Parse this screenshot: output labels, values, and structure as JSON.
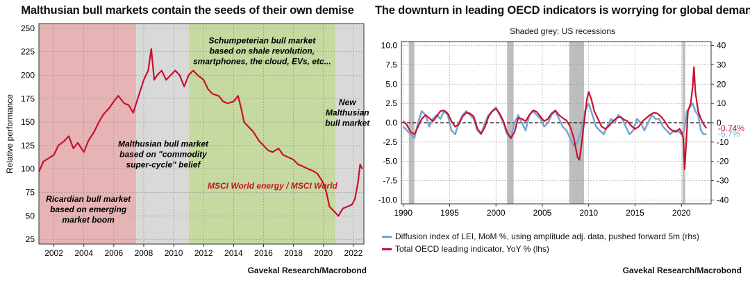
{
  "left": {
    "title": "Malthusian bull markets contain the seeds of their own demise",
    "source": "Gavekal Research/Macrobond"
  },
  "right": {
    "title": "The downturn in leading OECD indicators is worrying for global demand",
    "subtitle": "Shaded grey: US recessions",
    "source": "Gavekal Research/Macrobond"
  },
  "colors": {
    "red": "#c8102e",
    "blue": "#7aa6cf",
    "pink": "#e6b4b4",
    "grey": "#d9d9d9",
    "green": "#c5d9a0",
    "rec": "#bdbdbd"
  },
  "chart_data": [
    {
      "type": "line",
      "title": "Malthusian bull markets contain the seeds of their own demise",
      "ylabel": "Relative performance",
      "xlim": [
        2001,
        2022.7
      ],
      "ylim": [
        20,
        255
      ],
      "yticks": [
        25,
        50,
        75,
        100,
        125,
        150,
        175,
        200,
        225,
        250
      ],
      "xticks": [
        2002,
        2004,
        2006,
        2008,
        2010,
        2012,
        2014,
        2016,
        2018,
        2020,
        2022
      ],
      "grid": true,
      "regions": [
        {
          "x0": 2001,
          "x1": 2007.5,
          "color": "pink",
          "label": [
            "Ricardian bull market",
            "based on emerging",
            "market boom"
          ],
          "lx": 2004.3,
          "ly": 65
        },
        {
          "x0": 2007.5,
          "x1": 2011,
          "color": "grey",
          "label": [
            "Malthusian bull market",
            "based on \"commodity",
            "super-cycle\" belief"
          ],
          "lx": 2009.3,
          "ly": 124
        },
        {
          "x0": 2011,
          "x1": 2020.8,
          "color": "green",
          "label": [
            "Schumpeterian bull market",
            "based on shale revolution,",
            "smartphones, the cloud, EVs, etc..."
          ],
          "lx": 2015.9,
          "ly": 234
        },
        {
          "x0": 2020.8,
          "x1": 2022.7,
          "color": "grey",
          "label": [
            "New",
            "Malthusian",
            "bull market"
          ],
          "lx": 2021.6,
          "ly": 168
        }
      ],
      "series_label": "MSCI World energy / MSCI World",
      "series_label_pos": {
        "x": 2016.6,
        "y": 79
      },
      "series": [
        {
          "name": "MSCI World energy / MSCI World",
          "color": "red",
          "x": [
            2001.0,
            2001.3,
            2001.7,
            2002.0,
            2002.3,
            2002.7,
            2003.0,
            2003.3,
            2003.6,
            2004.0,
            2004.3,
            2004.7,
            2005.0,
            2005.3,
            2005.7,
            2006.0,
            2006.3,
            2006.7,
            2007.0,
            2007.3,
            2007.6,
            2008.0,
            2008.3,
            2008.5,
            2008.7,
            2008.9,
            2009.2,
            2009.5,
            2009.8,
            2010.1,
            2010.4,
            2010.7,
            2011.0,
            2011.3,
            2011.6,
            2012.0,
            2012.3,
            2012.6,
            2013.0,
            2013.3,
            2013.6,
            2014.0,
            2014.3,
            2014.5,
            2014.7,
            2015.0,
            2015.3,
            2015.7,
            2016.0,
            2016.3,
            2016.6,
            2017.0,
            2017.3,
            2017.6,
            2018.0,
            2018.3,
            2018.6,
            2019.0,
            2019.3,
            2019.6,
            2020.0,
            2020.2,
            2020.4,
            2020.7,
            2021.0,
            2021.3,
            2021.6,
            2021.9,
            2022.1,
            2022.3,
            2022.45,
            2022.6
          ],
          "y": [
            97,
            108,
            112,
            115,
            125,
            130,
            135,
            122,
            128,
            118,
            130,
            140,
            150,
            158,
            165,
            172,
            178,
            170,
            168,
            160,
            175,
            195,
            205,
            228,
            195,
            200,
            205,
            195,
            200,
            205,
            200,
            188,
            200,
            205,
            200,
            195,
            185,
            180,
            178,
            172,
            170,
            172,
            178,
            165,
            150,
            145,
            140,
            130,
            125,
            120,
            118,
            122,
            115,
            113,
            110,
            105,
            103,
            100,
            98,
            95,
            85,
            75,
            60,
            55,
            50,
            58,
            60,
            62,
            68,
            85,
            105,
            100
          ]
        }
      ]
    },
    {
      "type": "line",
      "title": "The downturn in leading OECD indicators is worrying for global demand",
      "subtitle": "Shaded grey: US recessions",
      "xlim": [
        1989.8,
        2023.2
      ],
      "ylim_lhs": [
        -10.5,
        10.5
      ],
      "ylim_rhs": [
        -42,
        42
      ],
      "yticks_lhs": [
        -10.0,
        -7.5,
        -5.0,
        -2.5,
        0.0,
        2.5,
        5.0,
        7.5,
        10.0
      ],
      "yticks_rhs": [
        -40,
        -30,
        -20,
        -10,
        0,
        10,
        20,
        30,
        40
      ],
      "xticks": [
        1990,
        1995,
        2000,
        2005,
        2010,
        2015,
        2020
      ],
      "grid": true,
      "recessions": [
        [
          1990.6,
          1991.2
        ],
        [
          2001.2,
          2001.9
        ],
        [
          2007.9,
          2009.5
        ],
        [
          2020.1,
          2020.4
        ]
      ],
      "end_labels": [
        {
          "text": "-0.74%",
          "color": "red",
          "y_lhs": -0.74
        },
        {
          "text": "-5.7%",
          "color": "blue",
          "y_lhs": -1.45
        }
      ],
      "series": [
        {
          "name": "Diffusion index of LEI, MoM %, using amplitude adj. data, pushed forward 5m (rhs)",
          "color": "blue",
          "axis": "rhs",
          "x": [
            1990.0,
            1990.4,
            1990.8,
            1991.2,
            1991.6,
            1992.0,
            1992.4,
            1992.8,
            1993.2,
            1993.6,
            1994.0,
            1994.4,
            1994.8,
            1995.2,
            1995.6,
            1996.0,
            1996.4,
            1996.8,
            1997.2,
            1997.6,
            1998.0,
            1998.4,
            1998.8,
            1999.2,
            1999.6,
            2000.0,
            2000.4,
            2000.8,
            2001.2,
            2001.6,
            2002.0,
            2002.4,
            2002.8,
            2003.2,
            2003.6,
            2004.0,
            2004.4,
            2004.8,
            2005.2,
            2005.6,
            2006.0,
            2006.4,
            2006.8,
            2007.2,
            2007.6,
            2008.0,
            2008.4,
            2008.8,
            2009.2,
            2009.6,
            2010.0,
            2010.4,
            2010.8,
            2011.2,
            2011.6,
            2012.0,
            2012.4,
            2012.8,
            2013.2,
            2013.6,
            2014.0,
            2014.4,
            2014.8,
            2015.2,
            2015.6,
            2016.0,
            2016.4,
            2016.8,
            2017.2,
            2017.6,
            2018.0,
            2018.4,
            2018.8,
            2019.2,
            2019.6,
            2020.0,
            2020.3,
            2020.6,
            2020.9,
            2021.2,
            2021.5,
            2021.8,
            2022.1,
            2022.4,
            2022.7
          ],
          "y": [
            -2,
            -4,
            -6,
            -8,
            0,
            6,
            4,
            -2,
            2,
            4,
            2,
            6,
            4,
            -4,
            -6,
            0,
            4,
            6,
            4,
            2,
            -4,
            -6,
            0,
            4,
            6,
            8,
            4,
            0,
            -6,
            -8,
            0,
            4,
            0,
            -4,
            4,
            6,
            4,
            2,
            -2,
            0,
            4,
            6,
            2,
            -2,
            -4,
            -8,
            -12,
            -10,
            -4,
            6,
            10,
            4,
            -2,
            -4,
            -6,
            -2,
            2,
            0,
            4,
            2,
            -2,
            -6,
            -4,
            2,
            0,
            -4,
            0,
            4,
            2,
            2,
            -2,
            -4,
            -6,
            -4,
            -4,
            -6,
            -4,
            6,
            8,
            10,
            6,
            4,
            -4,
            -6,
            -6
          ]
        },
        {
          "name": "Total OECD leading indicator, YoY % (lhs)",
          "color": "red",
          "axis": "lhs",
          "x": [
            1990.0,
            1990.4,
            1990.8,
            1991.2,
            1991.6,
            1992.0,
            1992.4,
            1992.8,
            1993.2,
            1993.6,
            1994.0,
            1994.4,
            1994.8,
            1995.2,
            1995.6,
            1996.0,
            1996.4,
            1996.8,
            1997.2,
            1997.6,
            1998.0,
            1998.4,
            1998.8,
            1999.2,
            1999.6,
            2000.0,
            2000.4,
            2000.8,
            2001.2,
            2001.6,
            2002.0,
            2002.4,
            2002.8,
            2003.2,
            2003.6,
            2004.0,
            2004.4,
            2004.8,
            2005.2,
            2005.6,
            2006.0,
            2006.4,
            2006.8,
            2007.2,
            2007.6,
            2008.0,
            2008.4,
            2008.8,
            2009.0,
            2009.2,
            2009.5,
            2009.8,
            2010.0,
            2010.3,
            2010.6,
            2011.0,
            2011.4,
            2011.8,
            2012.2,
            2012.6,
            2013.0,
            2013.4,
            2013.8,
            2014.2,
            2014.6,
            2015.0,
            2015.4,
            2015.8,
            2016.2,
            2016.6,
            2017.0,
            2017.4,
            2017.8,
            2018.2,
            2018.6,
            2019.0,
            2019.4,
            2019.8,
            2020.0,
            2020.2,
            2020.35,
            2020.5,
            2020.7,
            2021.0,
            2021.2,
            2021.35,
            2021.5,
            2021.8,
            2022.1,
            2022.4,
            2022.7
          ],
          "y": [
            0.2,
            -0.3,
            -1.2,
            -1.5,
            -0.5,
            0.5,
            1.0,
            0.6,
            0.2,
            0.8,
            1.5,
            1.6,
            1.2,
            0.2,
            -0.5,
            -0.2,
            0.8,
            1.3,
            1.2,
            0.8,
            -0.8,
            -1.4,
            -0.6,
            0.8,
            1.5,
            1.8,
            1.2,
            0.2,
            -1.2,
            -2.0,
            -1.2,
            0.6,
            0.5,
            0.2,
            1.0,
            1.6,
            1.4,
            0.8,
            0.2,
            0.5,
            1.2,
            1.6,
            1.0,
            0.6,
            0.3,
            -0.5,
            -2.0,
            -4.5,
            -4.8,
            -3.0,
            0.0,
            3.0,
            4.0,
            3.0,
            1.5,
            0.5,
            -0.5,
            -0.8,
            -0.4,
            0.2,
            0.6,
            0.8,
            0.4,
            0.2,
            -0.4,
            -0.8,
            -0.5,
            0.2,
            0.6,
            1.0,
            1.3,
            1.2,
            0.8,
            0.2,
            -0.6,
            -1.0,
            -1.2,
            -0.8,
            -1.2,
            -2.0,
            -6.0,
            -3.0,
            1.5,
            2.5,
            4.5,
            7.2,
            4.0,
            1.5,
            0.5,
            -0.2,
            -0.74
          ]
        }
      ]
    }
  ]
}
